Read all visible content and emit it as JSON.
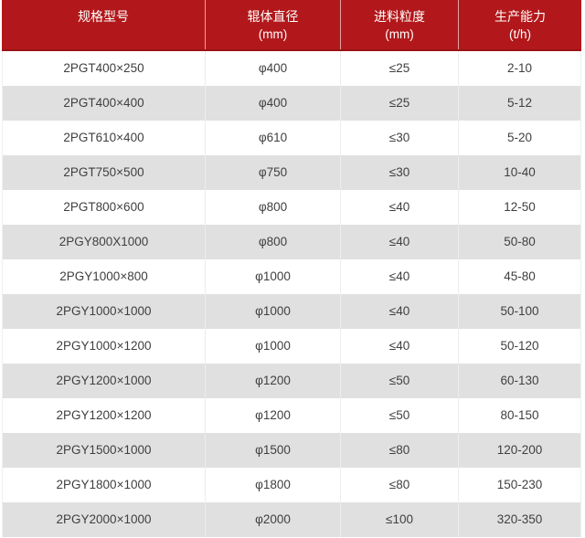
{
  "colors": {
    "header_bg": "#b2181b",
    "header_border_bottom": "#9a1214",
    "header_text": "#ffffff",
    "row_bg": "#ffffff",
    "row_alt_bg": "#e0e0e0",
    "body_text": "#3f3f3f",
    "grid_line": "#ededed"
  },
  "table": {
    "headers": [
      {
        "title": "规格型号",
        "unit": ""
      },
      {
        "title": "辊体直径",
        "unit": "(mm)"
      },
      {
        "title": "进料粒度",
        "unit": "(mm)"
      },
      {
        "title": "生产能力",
        "unit": "(t/h)"
      }
    ],
    "rows": [
      {
        "model": "2PGT400×250",
        "diameter": "φ400",
        "feed": "≤25",
        "capacity": "2-10"
      },
      {
        "model": "2PGT400×400",
        "diameter": "φ400",
        "feed": "≤25",
        "capacity": "5-12"
      },
      {
        "model": "2PGT610×400",
        "diameter": "φ610",
        "feed": "≤30",
        "capacity": "5-20"
      },
      {
        "model": "2PGT750×500",
        "diameter": "φ750",
        "feed": "≤30",
        "capacity": "10-40"
      },
      {
        "model": "2PGT800×600",
        "diameter": "φ800",
        "feed": "≤40",
        "capacity": "12-50"
      },
      {
        "model": "2PGY800X1000",
        "diameter": "φ800",
        "feed": "≤40",
        "capacity": "50-80"
      },
      {
        "model": "2PGY1000×800",
        "diameter": "φ1000",
        "feed": "≤40",
        "capacity": "45-80"
      },
      {
        "model": "2PGY1000×1000",
        "diameter": "φ1000",
        "feed": "≤40",
        "capacity": "50-100"
      },
      {
        "model": "2PGY1000×1200",
        "diameter": "φ1000",
        "feed": "≤40",
        "capacity": "50-120"
      },
      {
        "model": "2PGY1200×1000",
        "diameter": "φ1200",
        "feed": "≤50",
        "capacity": "60-130"
      },
      {
        "model": "2PGY1200×1200",
        "diameter": "φ1200",
        "feed": "≤50",
        "capacity": "80-150"
      },
      {
        "model": "2PGY1500×1000",
        "diameter": "φ1500",
        "feed": "≤80",
        "capacity": "120-200"
      },
      {
        "model": "2PGY1800×1000",
        "diameter": "φ1800",
        "feed": "≤80",
        "capacity": "150-230"
      },
      {
        "model": "2PGY2000×1000",
        "diameter": "φ2000",
        "feed": "≤100",
        "capacity": "320-350"
      }
    ]
  },
  "chart_data": {
    "type": "table",
    "columns": [
      "规格型号",
      "辊体直径 (mm)",
      "进料粒度 (mm)",
      "生产能力 (t/h)"
    ],
    "rows": [
      [
        "2PGT400×250",
        "φ400",
        "≤25",
        "2-10"
      ],
      [
        "2PGT400×400",
        "φ400",
        "≤25",
        "5-12"
      ],
      [
        "2PGT610×400",
        "φ610",
        "≤30",
        "5-20"
      ],
      [
        "2PGT750×500",
        "φ750",
        "≤30",
        "10-40"
      ],
      [
        "2PGT800×600",
        "φ800",
        "≤40",
        "12-50"
      ],
      [
        "2PGY800X1000",
        "φ800",
        "≤40",
        "50-80"
      ],
      [
        "2PGY1000×800",
        "φ1000",
        "≤40",
        "45-80"
      ],
      [
        "2PGY1000×1000",
        "φ1000",
        "≤40",
        "50-100"
      ],
      [
        "2PGY1000×1200",
        "φ1000",
        "≤40",
        "50-120"
      ],
      [
        "2PGY1200×1000",
        "φ1200",
        "≤50",
        "60-130"
      ],
      [
        "2PGY1200×1200",
        "φ1200",
        "≤50",
        "80-150"
      ],
      [
        "2PGY1500×1000",
        "φ1500",
        "≤80",
        "120-200"
      ],
      [
        "2PGY1800×1000",
        "φ1800",
        "≤80",
        "150-230"
      ],
      [
        "2PGY2000×1000",
        "φ2000",
        "≤100",
        "320-350"
      ]
    ]
  }
}
